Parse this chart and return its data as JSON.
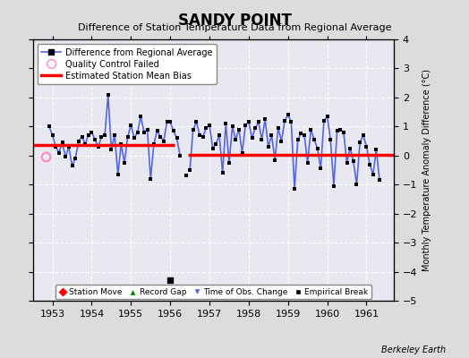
{
  "title": "SANDY POINT",
  "subtitle": "Difference of Station Temperature Data from Regional Average",
  "ylabel": "Monthly Temperature Anomaly Difference (°C)",
  "credit": "Berkeley Earth",
  "xlim": [
    1952.5,
    1961.7
  ],
  "ylim": [
    -5,
    4
  ],
  "yticks": [
    -5,
    -4,
    -3,
    -2,
    -1,
    0,
    1,
    2,
    3,
    4
  ],
  "xticks": [
    1953,
    1954,
    1955,
    1956,
    1957,
    1958,
    1959,
    1960,
    1961
  ],
  "bg_color": "#dcdcdc",
  "plot_bg_color": "#e8e8f0",
  "line_color": "#5566dd",
  "marker_color": "#000000",
  "bias1_y": 0.35,
  "bias1_xstart": 1952.5,
  "bias1_xend": 1956.1,
  "bias2_y": 0.02,
  "bias2_xstart": 1956.45,
  "bias2_xend": 1961.7,
  "empirical_break_x": 1956.0,
  "empirical_break_y": -4.3,
  "qc_fail_x": 1952.83,
  "qc_fail_y": -0.05,
  "gap_start": 1956.25,
  "gap_end": 1956.45,
  "data_x": [
    1952.917,
    1953.0,
    1953.083,
    1953.167,
    1953.25,
    1953.333,
    1953.417,
    1953.5,
    1953.583,
    1953.667,
    1953.75,
    1953.833,
    1953.917,
    1954.0,
    1954.083,
    1954.167,
    1954.25,
    1954.333,
    1954.417,
    1954.5,
    1954.583,
    1954.667,
    1954.75,
    1954.833,
    1954.917,
    1955.0,
    1955.083,
    1955.167,
    1955.25,
    1955.333,
    1955.417,
    1955.5,
    1955.583,
    1955.667,
    1955.75,
    1955.833,
    1955.917,
    1956.0,
    1956.083,
    1956.167,
    1956.25,
    1956.417,
    1956.5,
    1956.583,
    1956.667,
    1956.75,
    1956.833,
    1956.917,
    1957.0,
    1957.083,
    1957.167,
    1957.25,
    1957.333,
    1957.417,
    1957.5,
    1957.583,
    1957.667,
    1957.75,
    1957.833,
    1957.917,
    1958.0,
    1958.083,
    1958.167,
    1958.25,
    1958.333,
    1958.417,
    1958.5,
    1958.583,
    1958.667,
    1958.75,
    1958.833,
    1958.917,
    1959.0,
    1959.083,
    1959.167,
    1959.25,
    1959.333,
    1959.417,
    1959.5,
    1959.583,
    1959.667,
    1959.75,
    1959.833,
    1959.917,
    1960.0,
    1960.083,
    1960.167,
    1960.25,
    1960.333,
    1960.417,
    1960.5,
    1960.583,
    1960.667,
    1960.75,
    1960.833,
    1960.917,
    1961.0,
    1961.083,
    1961.167,
    1961.25,
    1961.333
  ],
  "data_y": [
    1.0,
    0.7,
    0.3,
    0.1,
    0.45,
    -0.05,
    0.3,
    -0.35,
    -0.1,
    0.5,
    0.65,
    0.4,
    0.7,
    0.8,
    0.55,
    0.3,
    0.65,
    0.7,
    2.1,
    0.2,
    0.7,
    -0.65,
    0.4,
    -0.25,
    0.65,
    1.05,
    0.6,
    0.8,
    1.35,
    0.8,
    0.9,
    -0.8,
    0.4,
    0.85,
    0.65,
    0.5,
    1.15,
    1.15,
    0.85,
    0.6,
    0.0,
    -0.7,
    -0.5,
    0.9,
    1.15,
    0.7,
    0.65,
    0.95,
    1.05,
    0.25,
    0.4,
    0.7,
    -0.6,
    1.1,
    -0.25,
    1.0,
    0.55,
    0.9,
    0.1,
    1.05,
    1.15,
    0.6,
    0.95,
    1.15,
    0.55,
    1.25,
    0.3,
    0.7,
    -0.15,
    0.95,
    0.5,
    1.2,
    1.4,
    1.15,
    -1.15,
    0.55,
    0.75,
    0.7,
    -0.25,
    0.9,
    0.55,
    0.25,
    -0.45,
    1.2,
    1.35,
    0.55,
    -1.05,
    0.85,
    0.9,
    0.8,
    -0.25,
    0.25,
    -0.2,
    -1.0,
    0.45,
    0.7,
    0.3,
    -0.3,
    -0.65,
    0.2,
    -0.85
  ],
  "legend_items": [
    "Difference from Regional Average",
    "Quality Control Failed",
    "Estimated Station Mean Bias"
  ],
  "bottom_legend_items": [
    "Station Move",
    "Record Gap",
    "Time of Obs. Change",
    "Empirical Break"
  ]
}
